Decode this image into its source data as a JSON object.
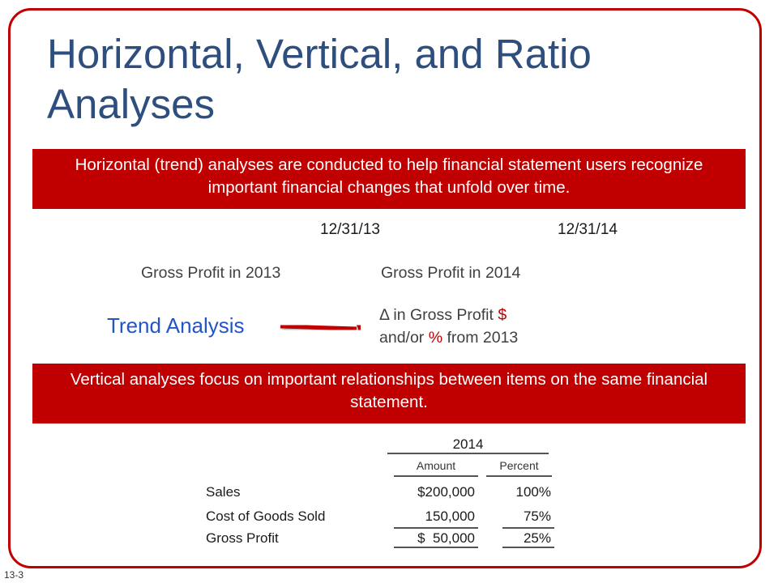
{
  "slide": {
    "title": "Horizontal, Vertical, and Ratio Analyses",
    "page_number": "13-3"
  },
  "banner_horizontal": {
    "text": "Horizontal (trend) analyses are conducted to help financial statement users recognize important financial changes that unfold over time."
  },
  "timeline": {
    "date_1": "12/31/13",
    "date_2": "12/31/14",
    "period_1": "Gross Profit in 2013",
    "period_2": "Gross Profit in 2014"
  },
  "trend": {
    "label": "Trend Analysis",
    "delta_line1_prefix": "Δ in Gross Profit ",
    "delta_line1_symbol": "$",
    "delta_line2_prefix": "and/or ",
    "delta_line2_symbol": "%",
    "delta_line2_suffix": " from 2013"
  },
  "banner_vertical": {
    "text": "Vertical analyses focus on important relationships between items on the same financial statement."
  },
  "table": {
    "year": "2014",
    "col_amount": "Amount",
    "col_percent": "Percent",
    "rows": [
      {
        "label": "Sales",
        "amount": "$200,000",
        "percent": "100%"
      },
      {
        "label": "Cost of Goods Sold",
        "amount": "150,000",
        "percent": "75%"
      },
      {
        "label": "Gross Profit",
        "amount": "$  50,000",
        "percent": "25%"
      }
    ]
  },
  "colors": {
    "border": "#c00000",
    "title": "#2e4e7e",
    "timeline": "#2554c7",
    "arrow": "#c00000"
  }
}
